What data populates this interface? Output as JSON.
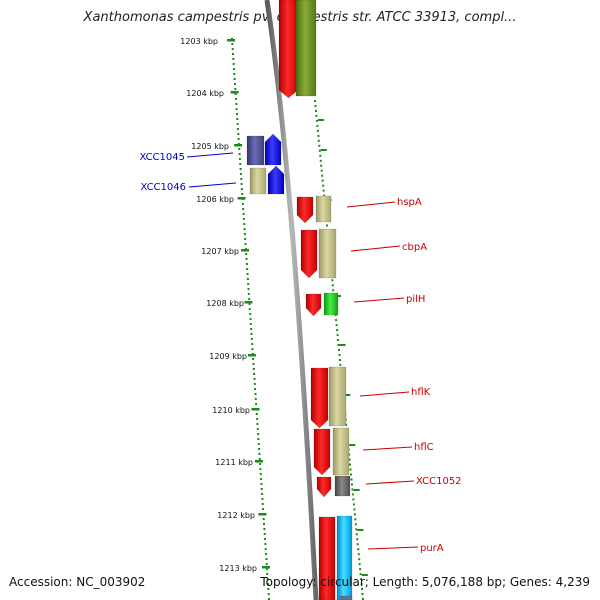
{
  "title": "Xanthomonas campestris pv. campestris str. ATCC 33913, compl...",
  "footer": {
    "accession": "Accession: NC_003902",
    "topology": "Topology: circular; Length: 5,076,188 bp; Genes: 4,239"
  },
  "axis": {
    "unit": "kbp",
    "ticks": [
      "1203 kbp",
      "1204 kbp",
      "1205 kbp",
      "1206 kbp",
      "1207 kbp",
      "1208 kbp",
      "1209 kbp",
      "1210 kbp",
      "1211 kbp",
      "1212 kbp",
      "1213 kbp"
    ]
  },
  "gene_labels": {
    "left": [
      "XCC1045",
      "XCC1046"
    ],
    "right": [
      "hspA",
      "cbpA",
      "pilH",
      "hflK",
      "hflC",
      "XCC1052",
      "purA"
    ]
  },
  "colors": {
    "axis_dots": "#1a8a1a",
    "left_label": "#0000cc",
    "right_label": "#cc0000",
    "backbone": "#888888",
    "cds": "#ee1111",
    "khaki": "#c8c48a",
    "olive": "#6b8e23",
    "blue": "#1010ee",
    "slate": "#55559a",
    "green": "#22cc22",
    "gray": "#666666",
    "cyan": "#11bbee"
  }
}
